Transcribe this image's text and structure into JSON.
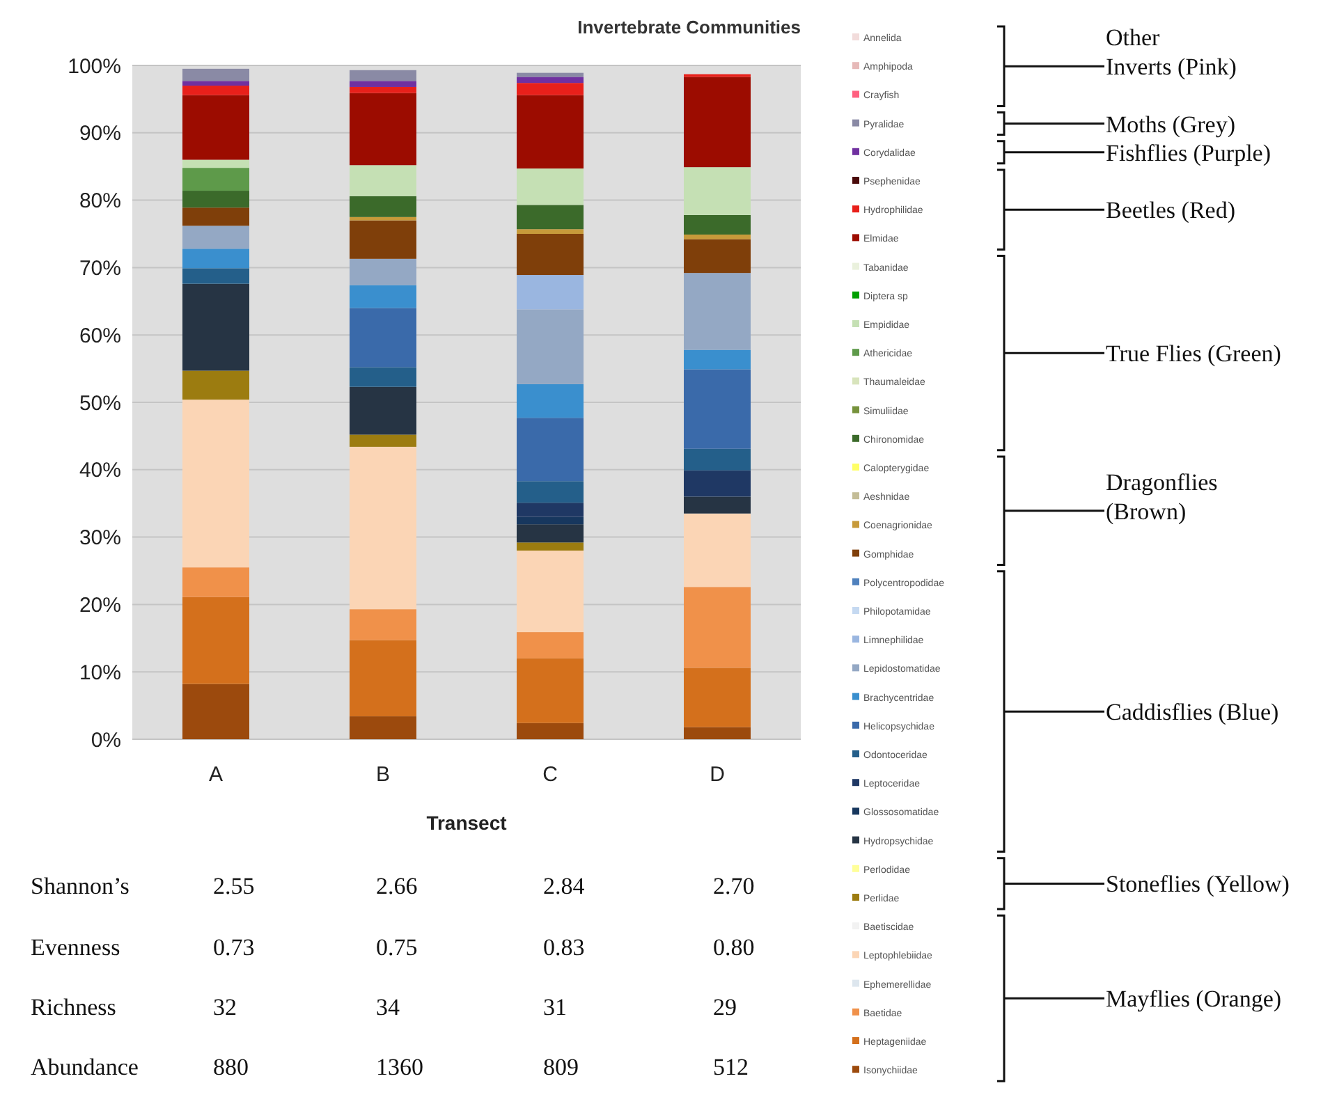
{
  "chart_data": {
    "type": "bar",
    "stacked": true,
    "title": "Invertebrate Communities",
    "xlabel": "Transect",
    "categories": [
      "A",
      "B",
      "C",
      "D"
    ],
    "ylim": [
      0,
      100
    ],
    "yticks": [
      {
        "value": 0,
        "label": "0%"
      },
      {
        "value": 10,
        "label": "10%"
      },
      {
        "value": 20,
        "label": "20%"
      },
      {
        "value": 30,
        "label": "30%"
      },
      {
        "value": 40,
        "label": "40%"
      },
      {
        "value": 50,
        "label": "50%"
      },
      {
        "value": 60,
        "label": "60%"
      },
      {
        "value": 70,
        "label": "70%"
      },
      {
        "value": 80,
        "label": "80%"
      },
      {
        "value": 90,
        "label": "90%"
      },
      {
        "value": 100,
        "label": "100%"
      }
    ],
    "grid": "y",
    "legend": "right",
    "series": [
      {
        "name": "Isonychiidae",
        "color": "#9c4a0d",
        "values": [
          8.2,
          3.4,
          2.4,
          1.8
        ]
      },
      {
        "name": "Heptageniidae",
        "color": "#d4701c",
        "values": [
          12.9,
          11.3,
          9.6,
          8.8
        ]
      },
      {
        "name": "Baetidae",
        "color": "#f0914a",
        "values": [
          4.4,
          4.6,
          3.9,
          12.0
        ]
      },
      {
        "name": "Ephemerellidae",
        "color": "#dde6ee",
        "values": [
          0,
          0,
          0,
          0
        ]
      },
      {
        "name": "Leptophlebiidae",
        "color": "#fbd5b5",
        "values": [
          24.9,
          24.1,
          12.1,
          10.9
        ]
      },
      {
        "name": "Baetiscidae",
        "color": "#f2f2f2",
        "values": [
          0,
          0,
          0,
          0
        ]
      },
      {
        "name": "Perlidae",
        "color": "#9c7c10",
        "values": [
          4.3,
          1.8,
          1.2,
          0
        ]
      },
      {
        "name": "Perlodidae",
        "color": "#ffff99",
        "values": [
          0,
          0,
          0,
          0
        ]
      },
      {
        "name": "Hydropsychidae",
        "color": "#263444",
        "values": [
          12.9,
          7.1,
          2.7,
          2.5
        ]
      },
      {
        "name": "Glossosomatidae",
        "color": "#17375e",
        "values": [
          0,
          0,
          1.1,
          0
        ]
      },
      {
        "name": "Leptoceridae",
        "color": "#1f3864",
        "values": [
          0,
          0,
          2.1,
          3.9
        ]
      },
      {
        "name": "Odontoceridae",
        "color": "#245f8a",
        "values": [
          2.3,
          2.9,
          3.2,
          3.2
        ]
      },
      {
        "name": "Helicopsychidae",
        "color": "#3a6aaa",
        "values": [
          0,
          8.8,
          9.4,
          11.8
        ]
      },
      {
        "name": "Brachycentridae",
        "color": "#3a8fce",
        "values": [
          2.9,
          3.4,
          5.0,
          2.9
        ]
      },
      {
        "name": "Lepidostomatidae",
        "color": "#94a8c4",
        "values": [
          3.4,
          3.9,
          11.1,
          11.4
        ]
      },
      {
        "name": "Limnephilidae",
        "color": "#9ab6e0",
        "values": [
          0,
          0,
          5.1,
          0
        ]
      },
      {
        "name": "Philopotamidae",
        "color": "#c5d9f1",
        "values": [
          0,
          0,
          0,
          0
        ]
      },
      {
        "name": "Polycentropodidae",
        "color": "#4f81bd",
        "values": [
          0,
          0,
          0,
          0
        ]
      },
      {
        "name": "Gomphidae",
        "color": "#7f3f0a",
        "values": [
          2.7,
          5.7,
          6.1,
          5.0
        ]
      },
      {
        "name": "Coenagrionidae",
        "color": "#c79a3a",
        "values": [
          0,
          0.5,
          0.7,
          0.7
        ]
      },
      {
        "name": "Aeshnidae",
        "color": "#c4bd97",
        "values": [
          0,
          0,
          0,
          0
        ]
      },
      {
        "name": "Calopterygidae",
        "color": "#ffff66",
        "values": [
          0,
          0,
          0,
          0
        ]
      },
      {
        "name": "Chironomidae",
        "color": "#3b6a2a",
        "values": [
          2.5,
          3.1,
          3.6,
          2.9
        ]
      },
      {
        "name": "Simuliidae",
        "color": "#76923c",
        "values": [
          0,
          0,
          0,
          0
        ]
      },
      {
        "name": "Thaumaleidae",
        "color": "#d8e4bc",
        "values": [
          0,
          0,
          0,
          0
        ]
      },
      {
        "name": "Athericidae",
        "color": "#5e9a4a",
        "values": [
          3.4,
          0,
          0,
          0
        ]
      },
      {
        "name": "Empididae",
        "color": "#c5e0b4",
        "values": [
          1.2,
          4.6,
          5.4,
          7.1
        ]
      },
      {
        "name": "Diptera sp",
        "color": "#00a000",
        "values": [
          0,
          0,
          0,
          0
        ]
      },
      {
        "name": "Tabanidae",
        "color": "#eaf1dd",
        "values": [
          0,
          0,
          0,
          0
        ]
      },
      {
        "name": "Elmidae",
        "color": "#9c0c00",
        "values": [
          9.6,
          10.7,
          10.9,
          13.4
        ]
      },
      {
        "name": "Hydrophilidae",
        "color": "#e8201a",
        "values": [
          1.4,
          0.9,
          1.8,
          0.4
        ]
      },
      {
        "name": "Psephenidae",
        "color": "#4a0a0a",
        "values": [
          0,
          0,
          0,
          0
        ]
      },
      {
        "name": "Corydalidae",
        "color": "#7030a0",
        "values": [
          0.7,
          0.9,
          0.9,
          0
        ]
      },
      {
        "name": "Pyralidae",
        "color": "#8a8aa5",
        "values": [
          1.8,
          1.6,
          0.6,
          0
        ]
      },
      {
        "name": "Crayfish",
        "color": "#ff6080",
        "values": [
          0,
          0,
          0,
          0
        ]
      },
      {
        "name": "Amphipoda",
        "color": "#e6b9b8",
        "values": [
          0,
          0,
          0,
          0
        ]
      },
      {
        "name": "Annelida",
        "color": "#f2dcdb",
        "values": [
          0,
          0,
          0,
          0
        ]
      }
    ],
    "annotations": [
      "Other Inverts (Pink)",
      "Moths (Grey)",
      "Fishflies (Purple)",
      "Beetles (Red)",
      "True Flies (Green)",
      "Dragonflies (Brown)",
      "Caddisflies (Blue)",
      "Stoneflies (Yellow)",
      "Mayflies (Orange)",
      "Shannon’s",
      "2.55",
      "2.66",
      "2.84",
      "2.70",
      "Evenness",
      "0.73",
      "0.75",
      "0.83",
      "0.80",
      "Richness",
      "32",
      "34",
      "31",
      "29",
      "Abundance",
      "880",
      "1360",
      "809",
      "512"
    ]
  }
}
